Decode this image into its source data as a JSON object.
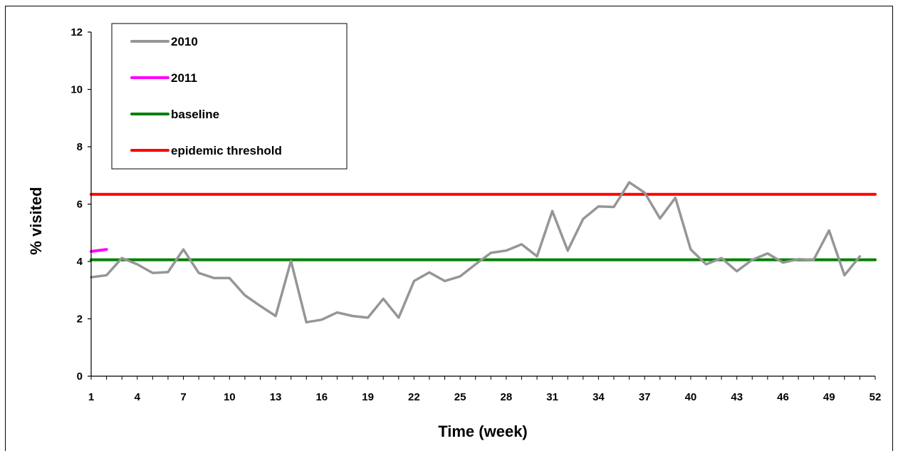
{
  "chart_data": {
    "type": "line",
    "xlabel": "Time (week)",
    "ylabel": "% visited",
    "xlim": [
      1,
      52
    ],
    "ylim": [
      0,
      12
    ],
    "x_ticks": [
      1,
      4,
      7,
      10,
      13,
      16,
      19,
      22,
      25,
      28,
      31,
      34,
      37,
      40,
      43,
      46,
      49,
      52
    ],
    "y_ticks": [
      0,
      2,
      4,
      6,
      8,
      10,
      12
    ],
    "grid": false,
    "legend": "top-left",
    "series": [
      {
        "name": "2010",
        "color": "#969696",
        "x": [
          1,
          2,
          3,
          4,
          5,
          6,
          7,
          8,
          9,
          10,
          11,
          12,
          13,
          14,
          15,
          16,
          17,
          18,
          19,
          20,
          21,
          22,
          23,
          24,
          25,
          26,
          27,
          28,
          29,
          30,
          31,
          32,
          33,
          34,
          35,
          36,
          37,
          38,
          39,
          40,
          41,
          42,
          43,
          44,
          45,
          46,
          47,
          48,
          49,
          50,
          51
        ],
        "values": [
          3.45,
          3.52,
          4.12,
          3.9,
          3.6,
          3.63,
          4.42,
          3.6,
          3.42,
          3.42,
          2.82,
          2.45,
          2.1,
          4.02,
          1.88,
          1.97,
          2.22,
          2.1,
          2.04,
          2.7,
          2.04,
          3.32,
          3.62,
          3.32,
          3.48,
          3.9,
          4.3,
          4.38,
          4.6,
          4.18,
          5.76,
          4.38,
          5.48,
          5.92,
          5.9,
          6.76,
          6.4,
          5.5,
          6.22,
          4.42,
          3.9,
          4.12,
          3.66,
          4.06,
          4.28,
          3.96,
          4.08,
          4.06,
          5.08,
          3.52,
          4.18
        ]
      },
      {
        "name": "2011",
        "color": "#ff00ff",
        "x": [
          1,
          2
        ],
        "values": [
          4.35,
          4.42
        ]
      },
      {
        "name": "baseline",
        "color": "#008000",
        "x": [
          1,
          52
        ],
        "values": [
          4.06,
          4.06
        ]
      },
      {
        "name": "epidemic threshold",
        "color": "#ff0000",
        "x": [
          1,
          52
        ],
        "values": [
          6.34,
          6.34
        ]
      }
    ]
  }
}
